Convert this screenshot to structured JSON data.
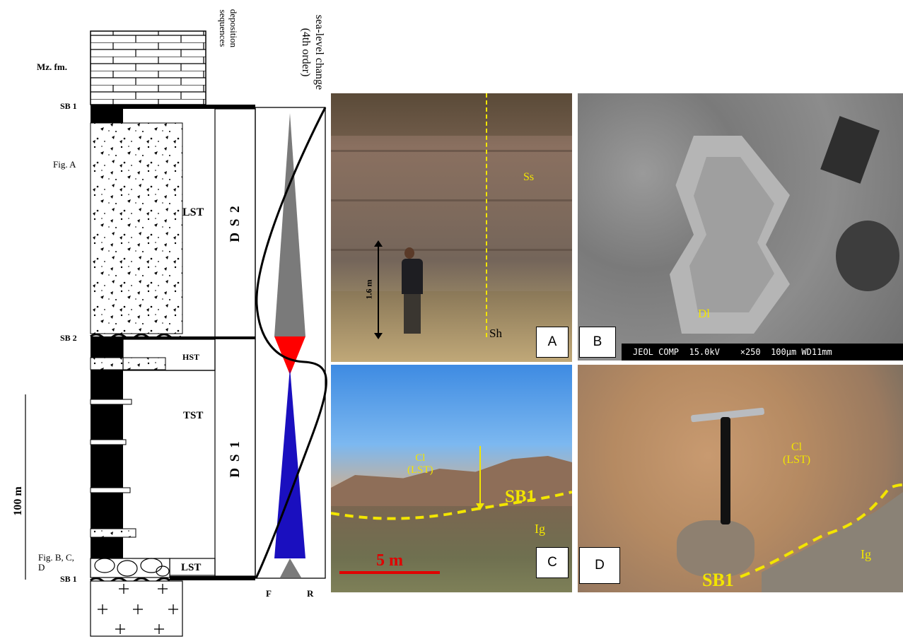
{
  "column": {
    "formation_label": "Mz. fm.",
    "sb1_top": "SB 1",
    "sb2": "SB 2",
    "sb1_bottom": "SB 1",
    "fig_a_ref": "Fig. A",
    "fig_bcd_ref": "Fig. B, C,\nD",
    "scale_label": "100 m",
    "header_sequences": "deposition\nsequences",
    "header_sealevel": "sea-level change\n(4th order)",
    "tracts": {
      "lst_upper": "LST",
      "hst": "HST",
      "tst": "TST",
      "lst_lower": "LST"
    },
    "sequences": {
      "ds2": "D S 2",
      "ds1": "D S 1"
    },
    "axis_left": "F",
    "axis_right": "R"
  },
  "photos": {
    "a": {
      "tag": "A",
      "ss": "Ss",
      "sh": "Sh",
      "height": "1.6 m"
    },
    "b": {
      "tag": "B",
      "dl": "Dl",
      "sem_bar": "JEOL COMP  15.0kV    ×250  100μm WD11mm"
    },
    "c": {
      "tag": "C",
      "cl": "Cl\n(LST)",
      "sb1": "SB1",
      "ig": "Ig",
      "scale": "5 m"
    },
    "d": {
      "tag": "D",
      "cl": "Cl\n(LST)",
      "sb1": "SB1",
      "ig": "Ig"
    }
  },
  "colors": {
    "regression": "#ff0000",
    "transgression": "#1a0fbf",
    "highstand": "#7a7a7a",
    "annotation": "#f2e500"
  }
}
